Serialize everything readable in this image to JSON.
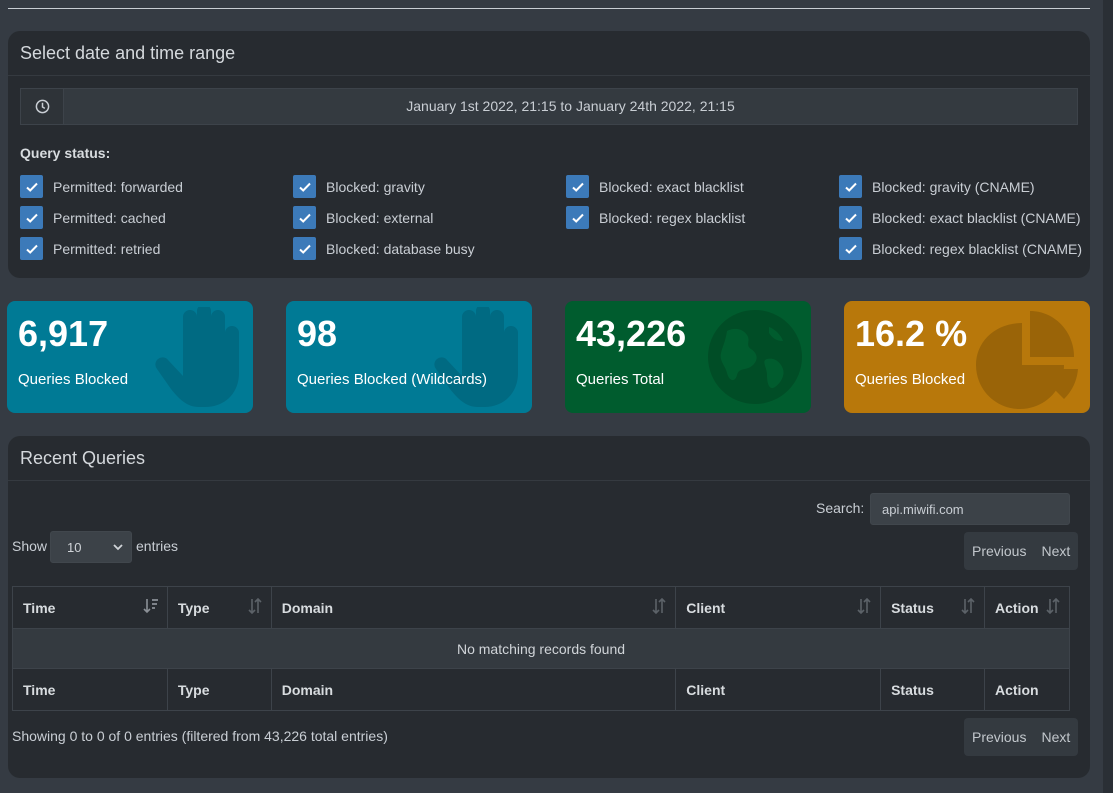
{
  "date_range": {
    "title": "Select date and time range",
    "value": "January 1st 2022, 21:15 to January 24th 2022, 21:15",
    "query_status_label": "Query status:",
    "checkboxes": [
      {
        "label": "Permitted: forwarded",
        "checked": true
      },
      {
        "label": "Permitted: cached",
        "checked": true
      },
      {
        "label": "Permitted: retried",
        "checked": true
      },
      {
        "label": "Blocked: gravity",
        "checked": true
      },
      {
        "label": "Blocked: external",
        "checked": true
      },
      {
        "label": "Blocked: database busy",
        "checked": true
      },
      {
        "label": "Blocked: exact blacklist",
        "checked": true
      },
      {
        "label": "Blocked: regex blacklist",
        "checked": true
      },
      {
        "label": "Blocked: gravity (CNAME)",
        "checked": true
      },
      {
        "label": "Blocked: exact blacklist (CNAME)",
        "checked": true
      },
      {
        "label": "Blocked: regex blacklist (CNAME)",
        "checked": true
      }
    ]
  },
  "stats": [
    {
      "value": "6,917",
      "label": "Queries Blocked",
      "color": "#007a95",
      "icon": "hand-icon"
    },
    {
      "value": "98",
      "label": "Queries Blocked (Wildcards)",
      "color": "#007a95",
      "icon": "hand-icon"
    },
    {
      "value": "43,226",
      "label": "Queries Total",
      "color": "#005c2e",
      "icon": "globe-icon"
    },
    {
      "value": "16.2 %",
      "label": "Queries Blocked",
      "color": "#b8780b",
      "icon": "pie-chart-icon"
    }
  ],
  "queries": {
    "title": "Recent Queries",
    "search_label": "Search:",
    "search_value": "api.miwifi.com",
    "show_label": "Show",
    "entries_value": "10",
    "entries_label": "entries",
    "previous_label": "Previous",
    "next_label": "Next",
    "columns": [
      "Time",
      "Type",
      "Domain",
      "Client",
      "Status",
      "Action"
    ],
    "empty_message": "No matching records found",
    "info": "Showing 0 to 0 of 0 entries (filtered from 43,226 total entries)"
  }
}
